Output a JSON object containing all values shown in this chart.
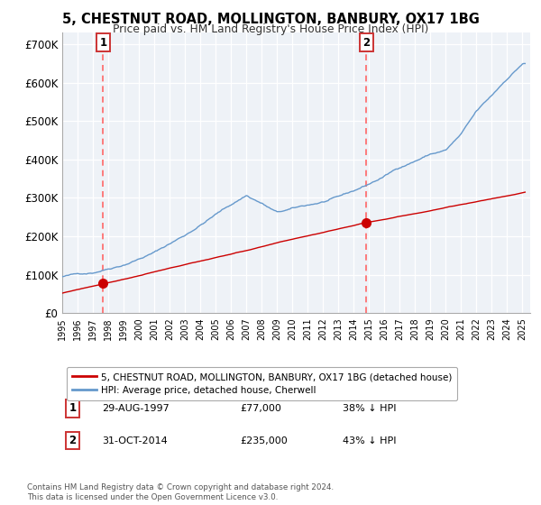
{
  "title": "5, CHESTNUT ROAD, MOLLINGTON, BANBURY, OX17 1BG",
  "subtitle": "Price paid vs. HM Land Registry's House Price Index (HPI)",
  "legend_line1": "5, CHESTNUT ROAD, MOLLINGTON, BANBURY, OX17 1BG (detached house)",
  "legend_line2": "HPI: Average price, detached house, Cherwell",
  "footnote": "Contains HM Land Registry data © Crown copyright and database right 2024.\nThis data is licensed under the Open Government Licence v3.0.",
  "sale1_label": "1",
  "sale1_date": "29-AUG-1997",
  "sale1_price": "£77,000",
  "sale1_hpi": "38% ↓ HPI",
  "sale1_year": 1997.66,
  "sale1_value": 77000,
  "sale2_label": "2",
  "sale2_date": "31-OCT-2014",
  "sale2_price": "£235,000",
  "sale2_hpi": "43% ↓ HPI",
  "sale2_year": 2014.83,
  "sale2_value": 235000,
  "price_color": "#cc0000",
  "hpi_color": "#6699cc",
  "vline_color": "#ff6666",
  "plot_bg": "#eef2f7",
  "ylabel_vals": [
    0,
    100000,
    200000,
    300000,
    400000,
    500000,
    600000,
    700000
  ],
  "ylabel_texts": [
    "£0",
    "£100K",
    "£200K",
    "£300K",
    "£400K",
    "£500K",
    "£600K",
    "£700K"
  ],
  "xmin": 1995,
  "xmax": 2025.5,
  "ymin": 0,
  "ymax": 730000
}
